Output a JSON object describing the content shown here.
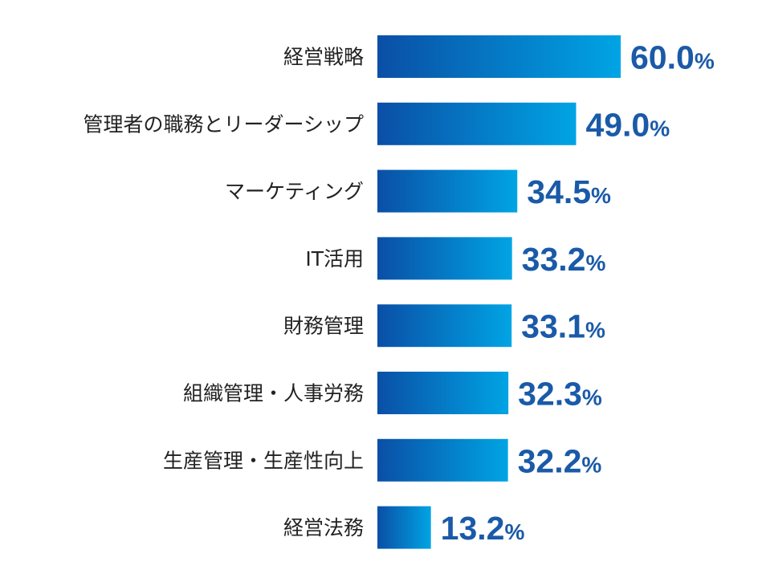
{
  "chart_data": {
    "type": "bar",
    "orientation": "horizontal",
    "categories": [
      "経営戦略",
      "管理者の職務とリーダーシップ",
      "マーケティング",
      "IT活用",
      "財務管理",
      "組織管理・人事労務",
      "生産管理・生産性向上",
      "経営法務"
    ],
    "values": [
      60.0,
      49.0,
      34.5,
      33.2,
      33.1,
      32.3,
      32.2,
      13.2
    ],
    "value_labels": [
      "60.0",
      "49.0",
      "34.5",
      "33.2",
      "33.1",
      "32.3",
      "32.2",
      "13.2"
    ],
    "unit": "%",
    "xlim": [
      0,
      60
    ],
    "grid": false,
    "colors": {
      "bar_start": "#0a4fa6",
      "bar_end": "#00a4e4",
      "value_text": "#1a5aa8",
      "label_text": "#222222"
    }
  }
}
